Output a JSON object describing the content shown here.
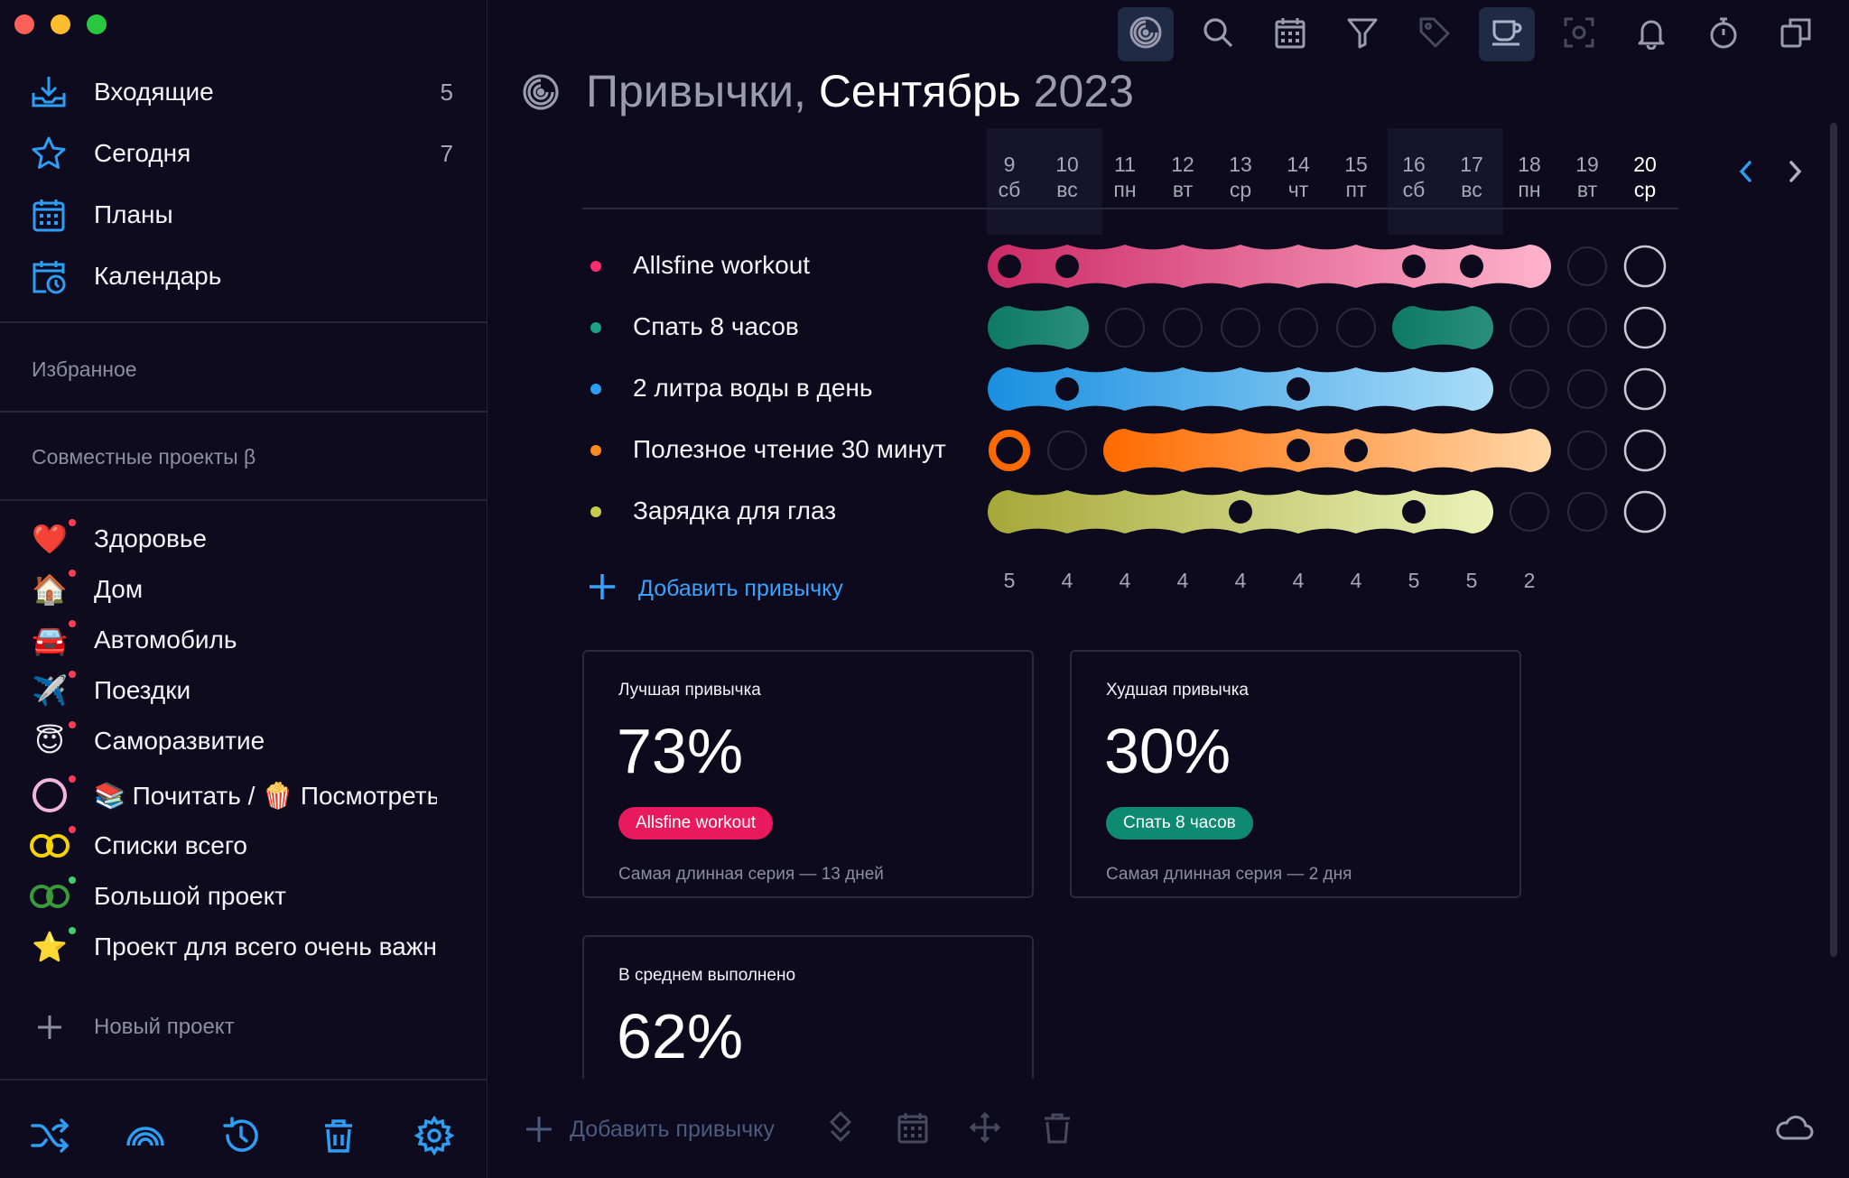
{
  "colors": {
    "accent": "#3aa3ff",
    "habit1": "#ff2d6f",
    "habit2": "#1ba38a",
    "habit3": "#2e9ef5",
    "habit4": "#ff8a1e",
    "habit5": "#c8cc48"
  },
  "sidebar": {
    "nav": [
      {
        "label": "Входящие",
        "count": "5",
        "icon": "inbox-icon"
      },
      {
        "label": "Сегодня",
        "count": "7",
        "icon": "star-icon"
      },
      {
        "label": "Планы",
        "count": "",
        "icon": "calendar-grid-icon"
      },
      {
        "label": "Календарь",
        "count": "",
        "icon": "calendar-clock-icon"
      }
    ],
    "favorites_title": "Избранное",
    "shared_title": "Совместные проекты β",
    "projects": [
      {
        "label": "Здоровье",
        "icon": "heart-icon",
        "glyph": "❤️",
        "dot": "#ff3b55"
      },
      {
        "label": "Дом",
        "icon": "house-icon",
        "glyph": "🏠",
        "dot": "#ff3b55"
      },
      {
        "label": "Автомобиль",
        "icon": "car-icon",
        "glyph": "🚘",
        "dot": "#ff3b55"
      },
      {
        "label": "Поездки",
        "icon": "airplane-icon",
        "glyph": "✈️",
        "dot": "#ff3b55"
      },
      {
        "label": "Саморазвитие",
        "icon": "angel-face-icon",
        "glyph": "😇",
        "dot": "#ff3b55"
      },
      {
        "label": "📚 Почитать / 🍿 Посмотреть",
        "icon": "ring-icon",
        "glyph": "",
        "dot": "#ff3b55"
      },
      {
        "label": "Списки всего",
        "icon": "double-ring-yellow-icon",
        "glyph": "",
        "dot": "#ff3b55"
      },
      {
        "label": "Большой проект",
        "icon": "double-ring-green-icon",
        "glyph": "",
        "dot": "#3cd070"
      },
      {
        "label": "Проект для всего очень важного",
        "icon": "star-emoji-icon",
        "glyph": "⭐",
        "dot": "#3cd070"
      }
    ],
    "new_project": "Новый проект"
  },
  "main": {
    "title": {
      "part1": "Привычки,",
      "part2": "Сентябрь",
      "part3": "2023"
    },
    "days": [
      {
        "num": "9",
        "wd": "сб"
      },
      {
        "num": "10",
        "wd": "вс"
      },
      {
        "num": "11",
        "wd": "пн"
      },
      {
        "num": "12",
        "wd": "вт"
      },
      {
        "num": "13",
        "wd": "ср"
      },
      {
        "num": "14",
        "wd": "чт"
      },
      {
        "num": "15",
        "wd": "пт"
      },
      {
        "num": "16",
        "wd": "сб"
      },
      {
        "num": "17",
        "wd": "вс"
      },
      {
        "num": "18",
        "wd": "пн"
      },
      {
        "num": "19",
        "wd": "вт"
      },
      {
        "num": "20",
        "wd": "ср"
      }
    ],
    "habits": [
      {
        "name": "Allsfine workout",
        "done": [
          1,
          1,
          1,
          1,
          1,
          1,
          1,
          1,
          1,
          1,
          0,
          0
        ],
        "marks": [
          0,
          1,
          7,
          8
        ],
        "colorFrom": "#cc2a66",
        "colorTo": "#ffb3cc",
        "dot": "#ff2d6f"
      },
      {
        "name": "Спать 8 часов",
        "done": [
          1,
          1,
          0,
          0,
          0,
          0,
          0,
          1,
          1,
          0,
          0,
          0
        ],
        "marks": [],
        "colorFrom": "#0e7a64",
        "colorTo": "#2a8f7a",
        "dot": "#1ba38a"
      },
      {
        "name": "2 литра воды в день",
        "done": [
          1,
          1,
          1,
          1,
          1,
          1,
          1,
          1,
          1,
          0,
          0,
          0
        ],
        "marks": [
          1,
          5
        ],
        "colorFrom": "#1a8fe0",
        "colorTo": "#a9dcf7",
        "dot": "#2e9ef5"
      },
      {
        "name": "Полезное чтение 30 минут",
        "done": [
          1,
          0,
          1,
          1,
          1,
          1,
          1,
          1,
          1,
          1,
          0,
          0
        ],
        "marks": [
          5,
          6
        ],
        "ringOnly": [
          0
        ],
        "colorFrom": "#ff6a00",
        "colorTo": "#ffd7a8",
        "dot": "#ff8a1e"
      },
      {
        "name": "Зарядка для глаз",
        "done": [
          1,
          1,
          1,
          1,
          1,
          1,
          1,
          1,
          1,
          0,
          0,
          0
        ],
        "marks": [
          4,
          7
        ],
        "colorFrom": "#a6a838",
        "colorTo": "#eaf2b8",
        "dot": "#c8cc48"
      }
    ],
    "add_habit": "Добавить привычку",
    "day_counts": [
      "5",
      "4",
      "4",
      "4",
      "4",
      "4",
      "4",
      "5",
      "5",
      "2",
      "",
      ""
    ],
    "cards": {
      "best": {
        "title": "Лучшая привычка",
        "value": "73%",
        "badge": "Allsfine workout",
        "badge_color": "#e8195d",
        "note": "Самая длинная серия — 13 дней"
      },
      "worst": {
        "title": "Худшая привычка",
        "value": "30%",
        "badge": "Спать 8 часов",
        "badge_color": "#0f8a72",
        "note": "Самая длинная серия — 2 дня"
      },
      "avg": {
        "title": "В среднем выполнено",
        "value": "62%"
      }
    },
    "bottom_add": "Добавить привычку"
  }
}
